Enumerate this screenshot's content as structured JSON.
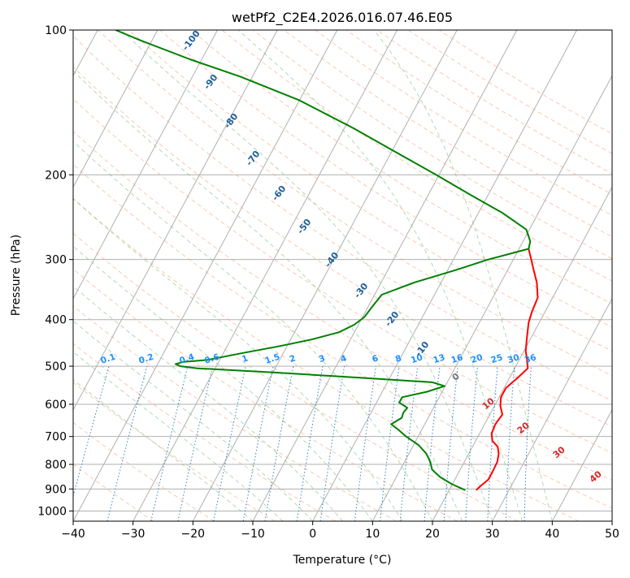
{
  "chart_data": {
    "type": "line",
    "subtype": "skew-t log-p diagram",
    "title": "wetPf2_C2E4.2026.016.07.46.E05",
    "xlabel": "Temperature (°C)",
    "ylabel": "Pressure (hPa)",
    "xlim": [
      -40,
      50
    ],
    "ylim": [
      1050,
      100
    ],
    "x_ticks": [
      -40,
      -30,
      -20,
      -10,
      0,
      10,
      20,
      30,
      40,
      50
    ],
    "x_tick_labels": [
      "−40",
      "−30",
      "−20",
      "−10",
      "0",
      "10",
      "20",
      "30",
      "40",
      "50"
    ],
    "y_ticks": [
      100,
      200,
      300,
      400,
      500,
      600,
      700,
      800,
      900,
      1000
    ],
    "y_tick_labels": [
      "100",
      "200",
      "300",
      "400",
      "500",
      "600",
      "700",
      "800",
      "900",
      "1000"
    ],
    "grid": true,
    "series": [
      {
        "name": "temperature",
        "color": "#ff0000",
        "pressure": [
          905,
          890,
          860,
          830,
          790,
          760,
          735,
          715,
          690,
          660,
          630,
          605,
          580,
          555,
          530,
          505,
          485,
          465,
          445,
          425,
          405,
          385,
          360,
          335,
          315,
          300,
          285
        ],
        "x_data": [
          24.5,
          24.8,
          25.6,
          25.6,
          25.5,
          25.0,
          24.2,
          22.8,
          22.0,
          21.8,
          22.1,
          21.0,
          20.3,
          20.3,
          21.3,
          22.2,
          21.3,
          20.3,
          19.6,
          18.9,
          18.2,
          17.8,
          17.5,
          16.0,
          14.3,
          13.0,
          11.6
        ]
      },
      {
        "name": "dewpoint",
        "color": "#008000",
        "pressure": [
          905,
          880,
          850,
          820,
          790,
          760,
          730,
          700,
          680,
          660,
          640,
          625,
          610,
          595,
          580,
          565,
          550,
          540,
          530,
          515,
          505,
          500,
          495,
          490,
          485,
          470,
          455,
          440,
          425,
          410,
          395,
          375,
          355,
          335,
          315,
          300,
          285,
          275,
          260,
          240,
          220,
          200,
          180,
          160,
          140,
          125,
          115,
          105,
          100
        ],
        "x_data": [
          22.7,
          20.0,
          17.3,
          15.3,
          14.3,
          12.9,
          10.9,
          8.0,
          6.3,
          4.4,
          5.6,
          5.4,
          5.6,
          3.8,
          3.8,
          7.5,
          9.9,
          7.5,
          -3.1,
          -20.0,
          -33.0,
          -36.0,
          -37.0,
          -36.0,
          -32.0,
          -27.0,
          -21.5,
          -16.5,
          -12.6,
          -10.7,
          -9.7,
          -9.3,
          -8.8,
          -4.5,
          1.5,
          5.8,
          11.6,
          11.2,
          9.5,
          4.0,
          -3.0,
          -10.5,
          -19.0,
          -28.5,
          -40.0,
          -52.0,
          -62.0,
          -72.0,
          -77.0
        ]
      }
    ],
    "dry_adiabats_c": [
      -30,
      -20,
      -10,
      0,
      10,
      20,
      30,
      40,
      50,
      60,
      70,
      80,
      90,
      100,
      110,
      120,
      130,
      140,
      150,
      160,
      170,
      180,
      190,
      200,
      210
    ],
    "moist_adiabats_c": [
      -10,
      -5,
      0,
      5,
      10,
      15,
      20,
      25,
      30,
      35,
      40
    ],
    "mixing_ratio_g_kg": [
      0.1,
      0.2,
      0.4,
      0.6,
      1,
      1.5,
      2,
      3,
      4,
      6,
      8,
      10,
      13,
      16,
      20,
      25,
      30,
      36
    ],
    "mixing_ratio_labels": [
      "0.1",
      "0.2",
      "0.4",
      "0.6",
      "1",
      "1.5",
      "2",
      "3",
      "4",
      "6",
      "8",
      "10",
      "13",
      "16",
      "20",
      "25",
      "30",
      "36"
    ],
    "blue_isotherm_labels": [
      "-100",
      "-90",
      "-80",
      "-70",
      "-60",
      "-50",
      "-40",
      "-30",
      "-20",
      "-10"
    ],
    "zero_label": "0",
    "red_isotherm_labels": [
      "10",
      "20",
      "30",
      "40"
    ]
  }
}
